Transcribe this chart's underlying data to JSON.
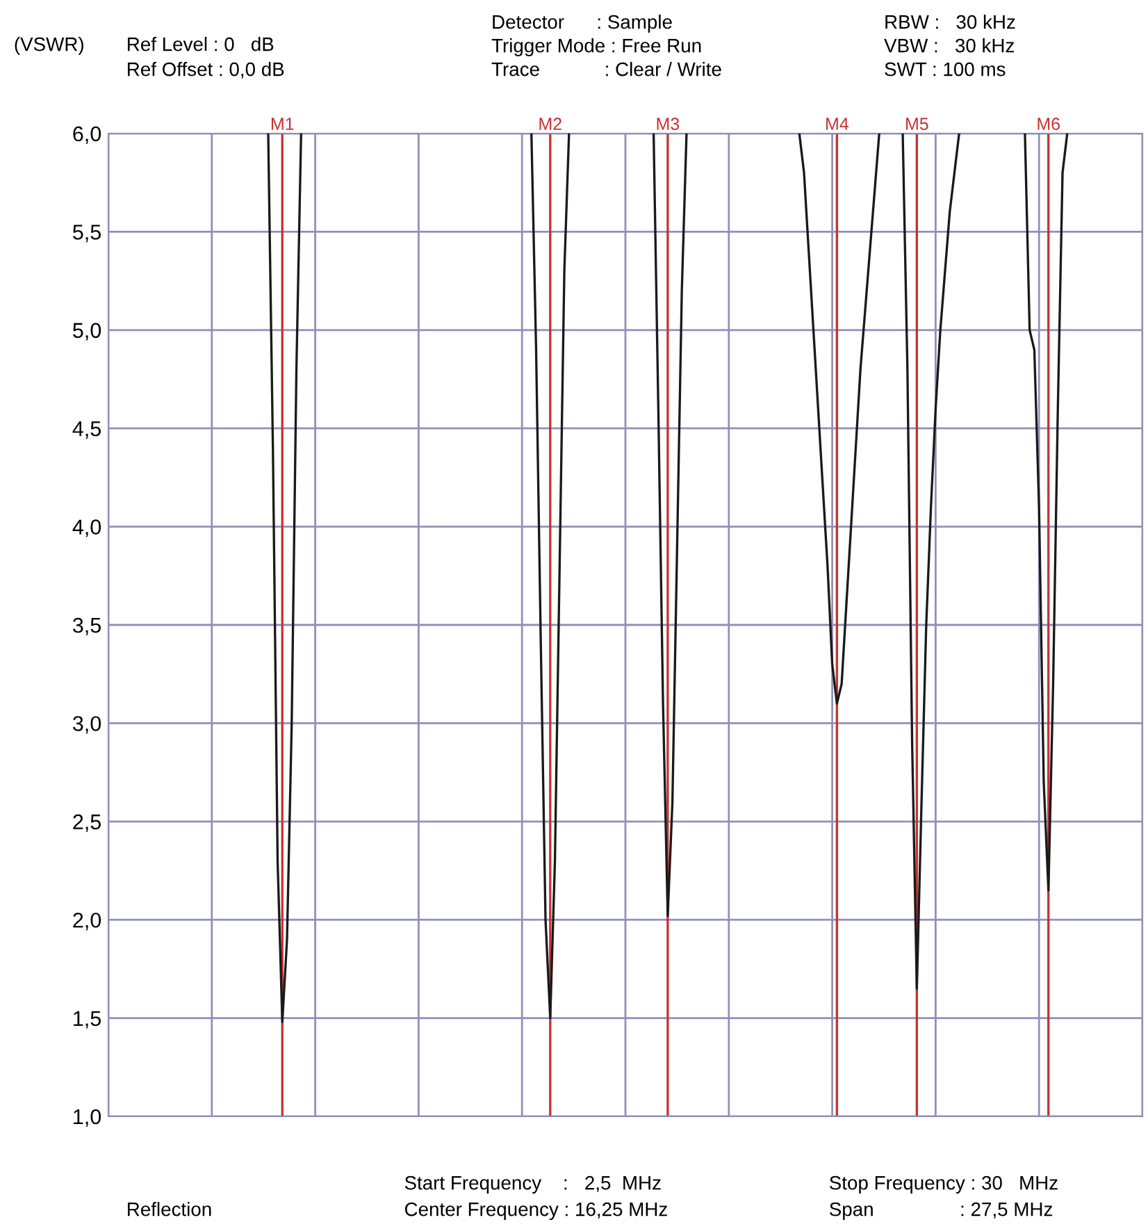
{
  "chart_data": {
    "type": "line",
    "ylabel": "(VSWR)",
    "categories": [
      null,
      null,
      null,
      null,
      null,
      null,
      null,
      null,
      null,
      null,
      null,
      null,
      null,
      null,
      null,
      null,
      null,
      null,
      null,
      null,
      null,
      null,
      null,
      null,
      null,
      null,
      null,
      null,
      null,
      null,
      null,
      null,
      null,
      null,
      null,
      null,
      null,
      null,
      null,
      null,
      null,
      null,
      null,
      null,
      null,
      null,
      null,
      null,
      null,
      null,
      null,
      null,
      null,
      null,
      null,
      null,
      null,
      null,
      null,
      null,
      null,
      null,
      null,
      null,
      null,
      null,
      null,
      null,
      null,
      null,
      null,
      null,
      null,
      null,
      null,
      null,
      null,
      null,
      null,
      null,
      null,
      null,
      null,
      null,
      null,
      null,
      null,
      null,
      null,
      null,
      null,
      null,
      null,
      null,
      null,
      null,
      null,
      null,
      null,
      null,
      null,
      null,
      null,
      null,
      null,
      null,
      null,
      null,
      null,
      null,
      null,
      null,
      null,
      null,
      null,
      null,
      null,
      null,
      null,
      null,
      null,
      null,
      null,
      null,
      null,
      null,
      null,
      null,
      null,
      null,
      null,
      null,
      null,
      null,
      null,
      null,
      null,
      null,
      null,
      null,
      null,
      null,
      null,
      null,
      null,
      null,
      null,
      null,
      null,
      null,
      null,
      null,
      null,
      null,
      null,
      null,
      null,
      null,
      null,
      null,
      null,
      null,
      null,
      null,
      null,
      null,
      null,
      null,
      null,
      null,
      null,
      null,
      null,
      null,
      null,
      null,
      null,
      null,
      null,
      null,
      null,
      null,
      null,
      null,
      null,
      null,
      null,
      null,
      null,
      null,
      null,
      null,
      null,
      null,
      null,
      null,
      null,
      null,
      null,
      null,
      null,
      null,
      null,
      null,
      null,
      null,
      null,
      null,
      null,
      null,
      null,
      null,
      null,
      null,
      null,
      null,
      null,
      null,
      null,
      null,
      null
    ],
    "series": [
      {
        "color": "#1a1a1a",
        "values": [
          null,
          null,
          null,
          null,
          null,
          null,
          null,
          null,
          null,
          null,
          null,
          null,
          null,
          null,
          null,
          null,
          null,
          null,
          null,
          null,
          null,
          null,
          null,
          null,
          null,
          null,
          null,
          null,
          null,
          null,
          null,
          null,
          null,
          null,
          6.0,
          4.4,
          2.3,
          1.48,
          1.9,
          3.0,
          4.8,
          6.0,
          null,
          null,
          null,
          null,
          null,
          null,
          null,
          null,
          null,
          null,
          null,
          null,
          null,
          null,
          null,
          null,
          null,
          null,
          null,
          null,
          null,
          null,
          null,
          null,
          null,
          null,
          null,
          null,
          null,
          null,
          null,
          null,
          null,
          null,
          null,
          null,
          null,
          null,
          null,
          null,
          null,
          null,
          null,
          null,
          null,
          null,
          null,
          null,
          6.0,
          4.9,
          3.4,
          2.0,
          1.5,
          2.3,
          3.8,
          5.3,
          6.0,
          null,
          null,
          null,
          null,
          null,
          null,
          null,
          null,
          null,
          null,
          null,
          null,
          null,
          null,
          null,
          null,
          null,
          6.0,
          4.6,
          3.1,
          2.02,
          2.6,
          3.9,
          5.2,
          6.0,
          null,
          null,
          null,
          null,
          null,
          null,
          null,
          null,
          null,
          null,
          null,
          null,
          null,
          null,
          null,
          null,
          null,
          null,
          null,
          null,
          null,
          null,
          null,
          6.0,
          5.8,
          5.4,
          5.0,
          4.6,
          4.2,
          3.8,
          3.3,
          3.1,
          3.2,
          3.6,
          4.0,
          4.4,
          4.8,
          5.1,
          5.4,
          5.7,
          6.0,
          null,
          null,
          null,
          null,
          6.0,
          4.8,
          2.9,
          1.65,
          2.6,
          3.5,
          4.1,
          4.6,
          5.0,
          5.3,
          5.6,
          5.8,
          6.0,
          null,
          null,
          null,
          null,
          null,
          null,
          null,
          null,
          null,
          null,
          null,
          null,
          null,
          6.0,
          5.0,
          4.9,
          4.1,
          2.7,
          2.15,
          3.2,
          4.6,
          5.8,
          6.0,
          null,
          null,
          null,
          null,
          null,
          null,
          null,
          null,
          null,
          null,
          null,
          null,
          null,
          null,
          null,
          null
        ]
      }
    ],
    "ylim": [
      1.0,
      6.0
    ],
    "yticks": [
      {
        "value": 1.0,
        "label": "1,0"
      },
      {
        "value": 1.5,
        "label": "1,5"
      },
      {
        "value": 2.0,
        "label": "2,0"
      },
      {
        "value": 2.5,
        "label": "2,5"
      },
      {
        "value": 3.0,
        "label": "3,0"
      },
      {
        "value": 3.5,
        "label": "3,5"
      },
      {
        "value": 4.0,
        "label": "4,0"
      },
      {
        "value": 4.5,
        "label": "4,5"
      },
      {
        "value": 5.0,
        "label": "5,0"
      },
      {
        "value": 5.5,
        "label": "5,5"
      },
      {
        "value": 6.0,
        "label": "6,0"
      }
    ],
    "tick_labels": "y",
    "grid": true,
    "marker": "none",
    "line_style": "solid",
    "annotations": [
      "Ref Level : 0   dB",
      "Ref Offset : 0,0 dB",
      "Detector      : Sample",
      "Trigger Mode : Free Run",
      "Trace            : Clear / Write",
      "RBW :   30 kHz",
      "VBW :   30 kHz",
      "SWT : 100 ms",
      "Start Frequency    :   2,5  MHz",
      "Center Frequency : 16,25 MHz",
      "Stop Frequency : 30   MHz",
      "Span                : 27,5 MHz",
      "Reflection",
      "M1",
      "M2",
      "M3",
      "M4",
      "M5",
      "M6"
    ]
  }
}
